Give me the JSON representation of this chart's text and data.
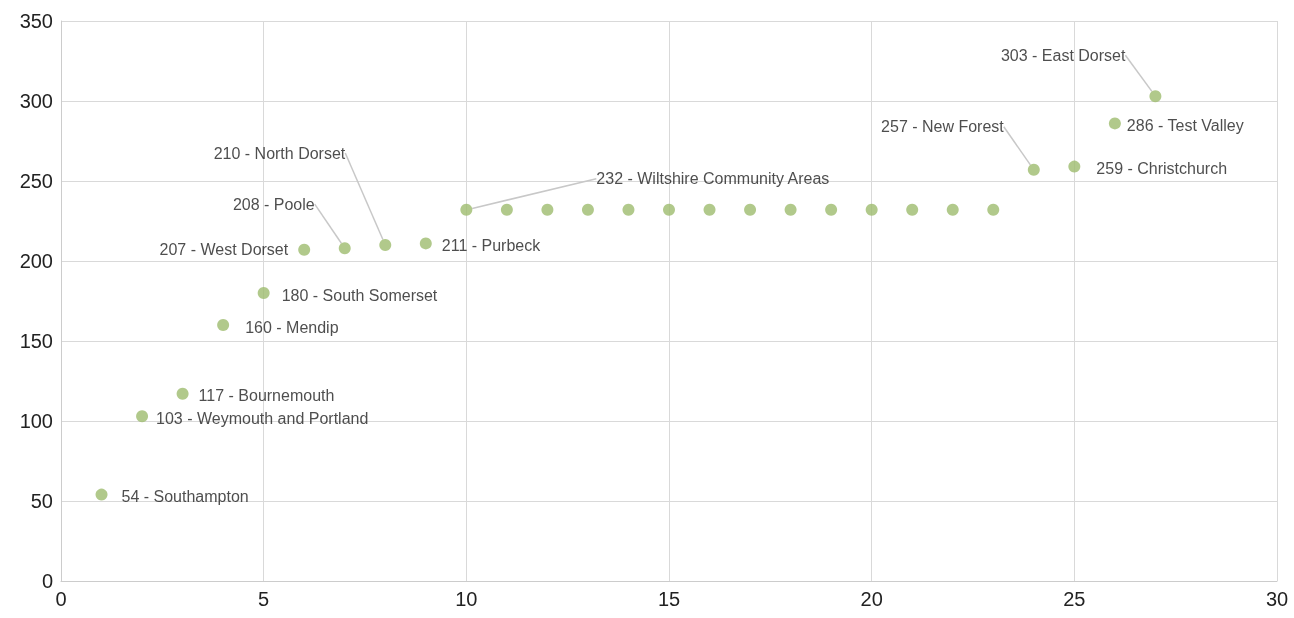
{
  "chart_data": {
    "type": "scatter",
    "x": [
      1,
      2,
      3,
      4,
      5,
      6,
      7,
      8,
      9,
      10,
      11,
      12,
      13,
      14,
      15,
      16,
      17,
      18,
      19,
      20,
      21,
      22,
      23,
      24,
      25,
      26,
      27
    ],
    "values": [
      54,
      103,
      117,
      160,
      180,
      207,
      208,
      210,
      211,
      232,
      232,
      232,
      232,
      232,
      232,
      232,
      232,
      232,
      232,
      232,
      232,
      232,
      232,
      257,
      259,
      286,
      303
    ],
    "value_labels": [
      "54 - Southampton",
      "103 - Weymouth and Portland",
      "117 - Bournemouth",
      "160 - Mendip",
      "180 - South Somerset",
      "207 - West Dorset",
      "208 - Poole",
      "210 - North Dorset",
      "211 - Purbeck",
      "232 - Wiltshire Community Areas",
      null,
      null,
      null,
      null,
      null,
      null,
      null,
      null,
      null,
      null,
      null,
      null,
      null,
      "257 - New Forest",
      "259 - Christchurch",
      "286 - Test Valley",
      "303 - East Dorset"
    ],
    "color": "#9dbb6e",
    "marker": "circle",
    "xlim": [
      0,
      30
    ],
    "xticks": [
      0,
      5,
      10,
      15,
      20,
      25,
      30
    ],
    "ylim": [
      0,
      350
    ],
    "yticks": [
      0,
      50,
      100,
      150,
      200,
      250,
      300,
      350
    ],
    "grid": true
  }
}
